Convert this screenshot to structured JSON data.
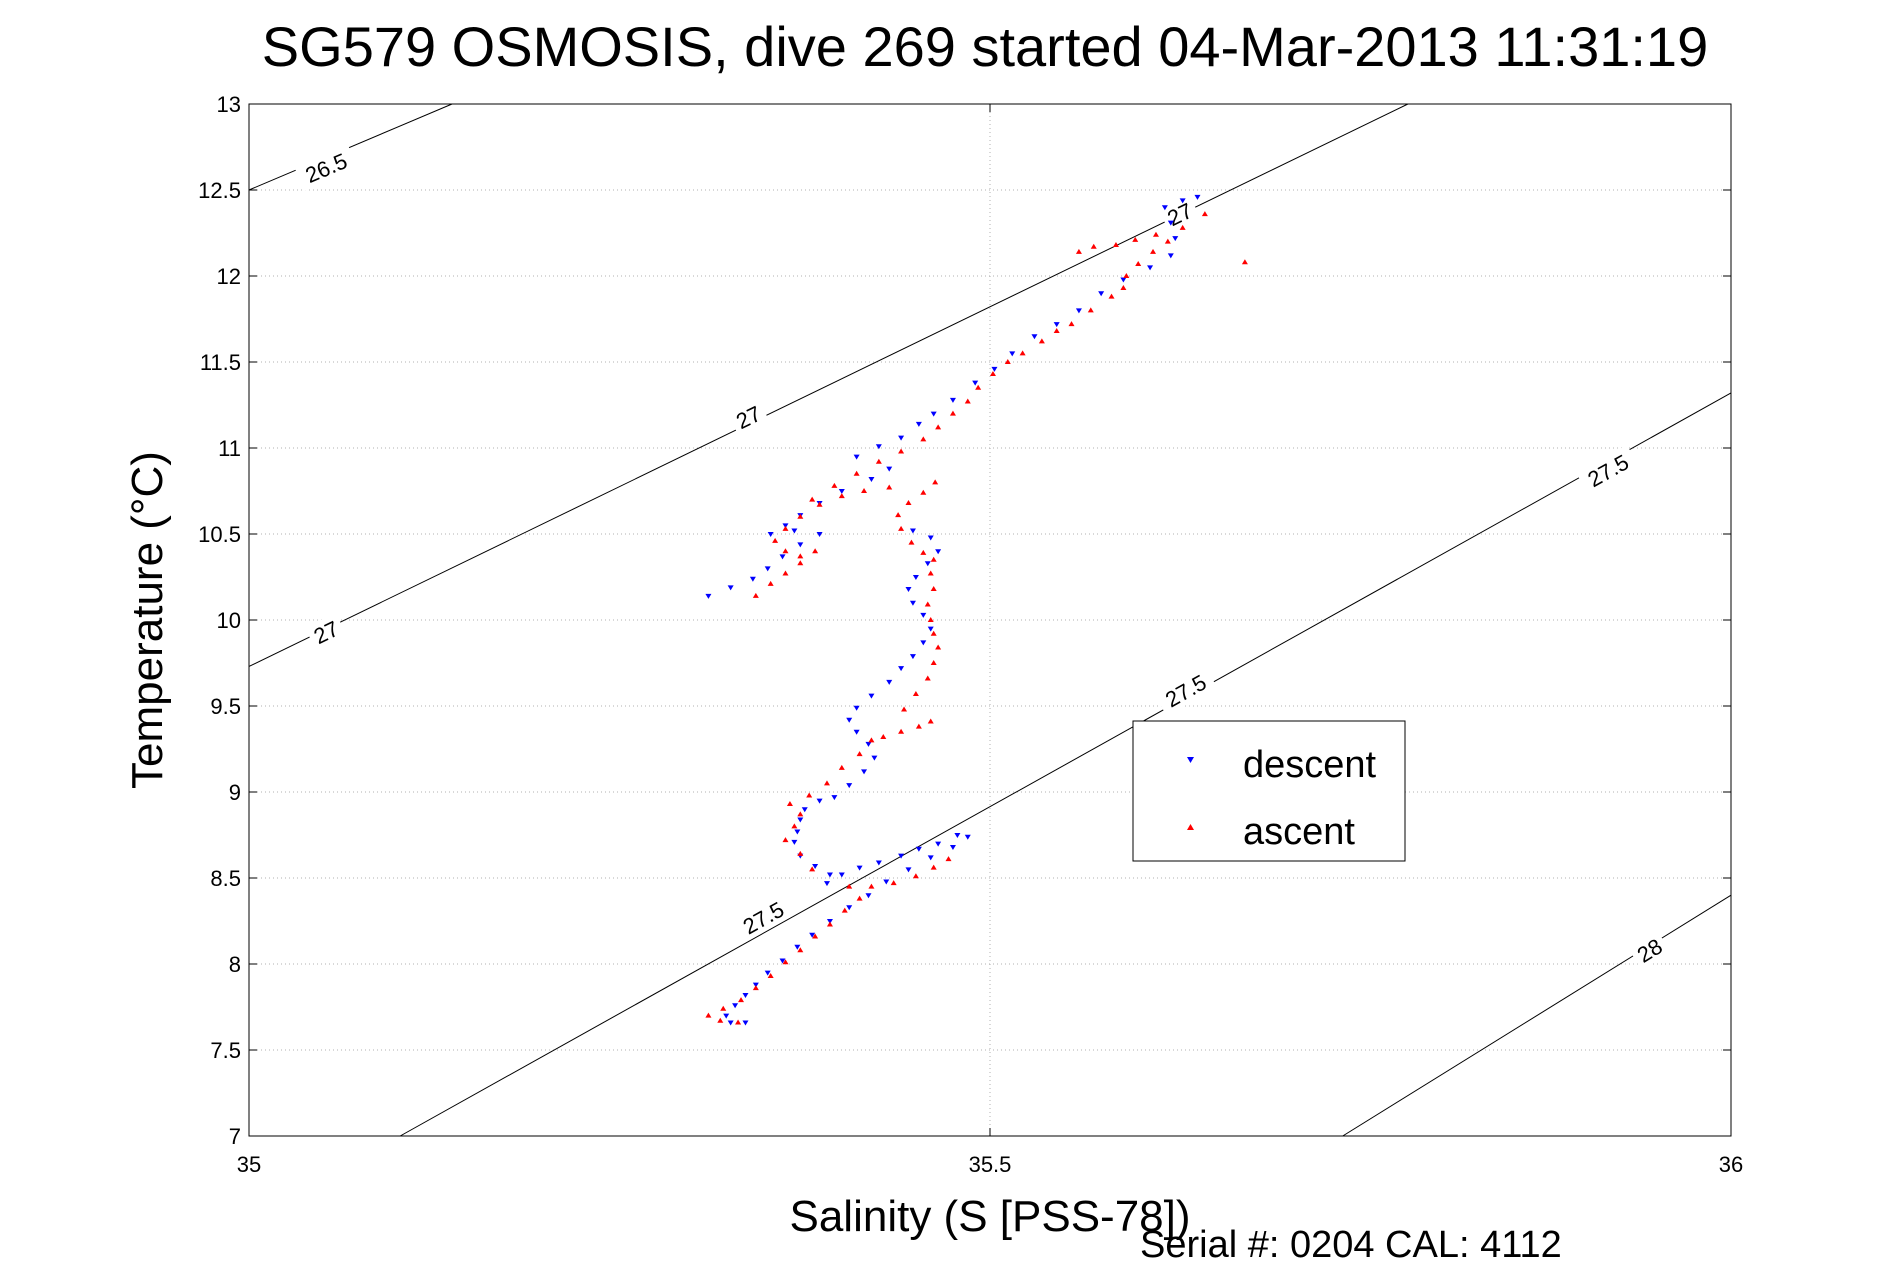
{
  "chart_data": {
    "type": "scatter",
    "title": "SG579 OSMOSIS, dive 269 started 04-Mar-2013 11:31:19",
    "xlabel": "Salinity (S [PSS-78])",
    "ylabel": "Temperature (°C)",
    "xlim": [
      35,
      36
    ],
    "ylim": [
      7,
      13
    ],
    "xticks": [
      35,
      35.5,
      36
    ],
    "xtick_labels": [
      "35",
      "35.5",
      "36"
    ],
    "yticks": [
      7,
      7.5,
      8,
      8.5,
      9,
      9.5,
      10,
      10.5,
      11,
      11.5,
      12,
      12.5,
      13
    ],
    "ytick_labels": [
      "7",
      "7.5",
      "8",
      "8.5",
      "9",
      "9.5",
      "10",
      "10.5",
      "11",
      "11.5",
      "12",
      "12.5",
      "13"
    ],
    "grid": true,
    "legend_position": "right-center",
    "footer": "Serial #: 0204  CAL: 4112",
    "series": [
      {
        "name": "descent",
        "color": "#0000ff",
        "marker": "triangle-down",
        "points": [
          [
            35.64,
            12.46
          ],
          [
            35.63,
            12.44
          ],
          [
            35.618,
            12.4
          ],
          [
            35.622,
            12.31
          ],
          [
            35.625,
            12.22
          ],
          [
            35.622,
            12.12
          ],
          [
            35.608,
            12.05
          ],
          [
            35.59,
            11.98
          ],
          [
            35.575,
            11.9
          ],
          [
            35.56,
            11.8
          ],
          [
            35.545,
            11.72
          ],
          [
            35.53,
            11.65
          ],
          [
            35.515,
            11.55
          ],
          [
            35.503,
            11.46
          ],
          [
            35.49,
            11.38
          ],
          [
            35.475,
            11.28
          ],
          [
            35.462,
            11.2
          ],
          [
            35.452,
            11.14
          ],
          [
            35.44,
            11.06
          ],
          [
            35.425,
            11.01
          ],
          [
            35.41,
            10.95
          ],
          [
            35.432,
            10.88
          ],
          [
            35.42,
            10.82
          ],
          [
            35.4,
            10.75
          ],
          [
            35.385,
            10.68
          ],
          [
            35.372,
            10.61
          ],
          [
            35.362,
            10.55
          ],
          [
            35.352,
            10.5
          ],
          [
            35.368,
            10.52
          ],
          [
            35.385,
            10.5
          ],
          [
            35.372,
            10.44
          ],
          [
            35.36,
            10.37
          ],
          [
            35.35,
            10.3
          ],
          [
            35.34,
            10.24
          ],
          [
            35.325,
            10.19
          ],
          [
            35.31,
            10.14
          ],
          [
            35.448,
            10.52
          ],
          [
            35.46,
            10.48
          ],
          [
            35.465,
            10.4
          ],
          [
            35.458,
            10.33
          ],
          [
            35.45,
            10.25
          ],
          [
            35.445,
            10.18
          ],
          [
            35.448,
            10.1
          ],
          [
            35.455,
            10.03
          ],
          [
            35.46,
            9.95
          ],
          [
            35.455,
            9.87
          ],
          [
            35.448,
            9.79
          ],
          [
            35.44,
            9.72
          ],
          [
            35.432,
            9.64
          ],
          [
            35.42,
            9.56
          ],
          [
            35.41,
            9.49
          ],
          [
            35.405,
            9.42
          ],
          [
            35.41,
            9.35
          ],
          [
            35.418,
            9.28
          ],
          [
            35.422,
            9.2
          ],
          [
            35.415,
            9.12
          ],
          [
            35.405,
            9.04
          ],
          [
            35.395,
            8.97
          ],
          [
            35.385,
            8.95
          ],
          [
            35.375,
            8.9
          ],
          [
            35.372,
            8.84
          ],
          [
            35.37,
            8.77
          ],
          [
            35.368,
            8.71
          ],
          [
            35.372,
            8.63
          ],
          [
            35.382,
            8.57
          ],
          [
            35.392,
            8.52
          ],
          [
            35.39,
            8.47
          ],
          [
            35.4,
            8.52
          ],
          [
            35.412,
            8.56
          ],
          [
            35.425,
            8.59
          ],
          [
            35.44,
            8.63
          ],
          [
            35.452,
            8.67
          ],
          [
            35.465,
            8.7
          ],
          [
            35.478,
            8.75
          ],
          [
            35.485,
            8.74
          ],
          [
            35.475,
            8.68
          ],
          [
            35.46,
            8.62
          ],
          [
            35.445,
            8.55
          ],
          [
            35.43,
            8.48
          ],
          [
            35.418,
            8.4
          ],
          [
            35.405,
            8.33
          ],
          [
            35.392,
            8.25
          ],
          [
            35.38,
            8.17
          ],
          [
            35.37,
            8.1
          ],
          [
            35.36,
            8.02
          ],
          [
            35.35,
            7.95
          ],
          [
            35.342,
            7.88
          ],
          [
            35.335,
            7.82
          ],
          [
            35.328,
            7.76
          ],
          [
            35.322,
            7.7
          ],
          [
            35.325,
            7.66
          ],
          [
            35.335,
            7.66
          ]
        ]
      },
      {
        "name": "ascent",
        "color": "#ff0000",
        "marker": "triangle-up",
        "points": [
          [
            35.33,
            7.66
          ],
          [
            35.318,
            7.67
          ],
          [
            35.31,
            7.7
          ],
          [
            35.32,
            7.74
          ],
          [
            35.332,
            7.79
          ],
          [
            35.342,
            7.86
          ],
          [
            35.352,
            7.93
          ],
          [
            35.362,
            8.01
          ],
          [
            35.372,
            8.08
          ],
          [
            35.382,
            8.16
          ],
          [
            35.392,
            8.23
          ],
          [
            35.402,
            8.31
          ],
          [
            35.412,
            8.38
          ],
          [
            35.405,
            8.45
          ],
          [
            35.42,
            8.45
          ],
          [
            35.435,
            8.47
          ],
          [
            35.45,
            8.51
          ],
          [
            35.462,
            8.56
          ],
          [
            35.472,
            8.61
          ],
          [
            35.38,
            8.55
          ],
          [
            35.372,
            8.64
          ],
          [
            35.362,
            8.72
          ],
          [
            35.368,
            8.8
          ],
          [
            35.372,
            8.87
          ],
          [
            35.365,
            8.93
          ],
          [
            35.378,
            8.98
          ],
          [
            35.39,
            9.05
          ],
          [
            35.4,
            9.14
          ],
          [
            35.412,
            9.22
          ],
          [
            35.42,
            9.3
          ],
          [
            35.428,
            9.32
          ],
          [
            35.44,
            9.35
          ],
          [
            35.452,
            9.38
          ],
          [
            35.46,
            9.41
          ],
          [
            35.442,
            9.48
          ],
          [
            35.45,
            9.57
          ],
          [
            35.458,
            9.66
          ],
          [
            35.462,
            9.75
          ],
          [
            35.465,
            9.84
          ],
          [
            35.462,
            9.92
          ],
          [
            35.46,
            10.0
          ],
          [
            35.458,
            10.09
          ],
          [
            35.462,
            10.18
          ],
          [
            35.46,
            10.27
          ],
          [
            35.462,
            10.35
          ],
          [
            35.455,
            10.39
          ],
          [
            35.447,
            10.45
          ],
          [
            35.44,
            10.53
          ],
          [
            35.438,
            10.61
          ],
          [
            35.445,
            10.68
          ],
          [
            35.455,
            10.74
          ],
          [
            35.463,
            10.8
          ],
          [
            35.432,
            10.77
          ],
          [
            35.415,
            10.75
          ],
          [
            35.4,
            10.72
          ],
          [
            35.385,
            10.67
          ],
          [
            35.372,
            10.6
          ],
          [
            35.362,
            10.53
          ],
          [
            35.355,
            10.46
          ],
          [
            35.362,
            10.4
          ],
          [
            35.372,
            10.37
          ],
          [
            35.382,
            10.4
          ],
          [
            35.372,
            10.33
          ],
          [
            35.362,
            10.27
          ],
          [
            35.352,
            10.21
          ],
          [
            35.342,
            10.14
          ],
          [
            35.38,
            10.7
          ],
          [
            35.395,
            10.78
          ],
          [
            35.41,
            10.85
          ],
          [
            35.425,
            10.92
          ],
          [
            35.44,
            10.98
          ],
          [
            35.455,
            11.05
          ],
          [
            35.465,
            11.12
          ],
          [
            35.475,
            11.2
          ],
          [
            35.485,
            11.27
          ],
          [
            35.492,
            11.35
          ],
          [
            35.502,
            11.43
          ],
          [
            35.512,
            11.5
          ],
          [
            35.522,
            11.55
          ],
          [
            35.535,
            11.62
          ],
          [
            35.545,
            11.68
          ],
          [
            35.555,
            11.72
          ],
          [
            35.568,
            11.8
          ],
          [
            35.582,
            11.88
          ],
          [
            35.59,
            11.93
          ],
          [
            35.592,
            12.0
          ],
          [
            35.6,
            12.07
          ],
          [
            35.61,
            12.14
          ],
          [
            35.62,
            12.2
          ],
          [
            35.612,
            12.24
          ],
          [
            35.598,
            12.21
          ],
          [
            35.585,
            12.18
          ],
          [
            35.57,
            12.17
          ],
          [
            35.56,
            12.14
          ],
          [
            35.63,
            12.28
          ],
          [
            35.645,
            12.36
          ],
          [
            35.672,
            12.08
          ]
        ]
      }
    ],
    "isopycnals": [
      {
        "label": "26.5",
        "line": [
          [
            35.0,
            12.5
          ],
          [
            35.137,
            13.0
          ]
        ],
        "label_positions": [
          [
            35.052,
            12.63
          ]
        ]
      },
      {
        "label": "27",
        "line": [
          [
            35.0,
            9.73
          ],
          [
            35.782,
            13.0
          ]
        ],
        "label_positions": [
          [
            35.052,
            9.93
          ],
          [
            35.337,
            11.18
          ],
          [
            35.628,
            12.36
          ]
        ]
      },
      {
        "label": "27.5",
        "line": [
          [
            35.102,
            7.0
          ],
          [
            36.0,
            11.32
          ]
        ],
        "label_positions": [
          [
            35.347,
            8.27
          ],
          [
            35.632,
            9.59
          ],
          [
            35.917,
            10.87
          ]
        ]
      },
      {
        "label": "28",
        "line": [
          [
            35.738,
            7.0
          ],
          [
            36.0,
            8.4
          ]
        ],
        "label_positions": [
          [
            35.945,
            8.08
          ]
        ]
      }
    ]
  }
}
